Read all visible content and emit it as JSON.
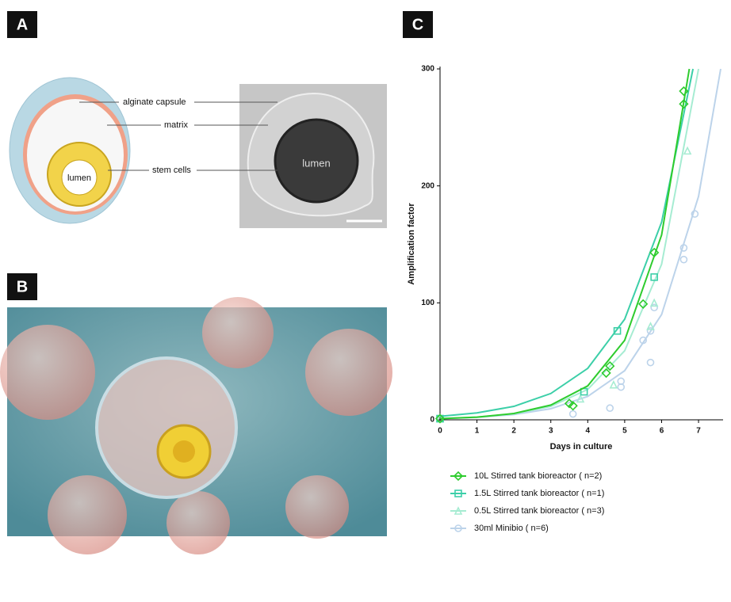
{
  "panels": {
    "labels": [
      "A",
      "B",
      "C"
    ],
    "panel_a": {
      "annotations": [
        "alginate capsule",
        "matrix",
        "stem cells"
      ],
      "lumen": [
        "lumen",
        "lumen"
      ]
    }
  },
  "chart_data": {
    "type": "scatter",
    "x_label": "Days in culture",
    "y_label": "Amplification factor",
    "xlim": [
      0,
      7.6
    ],
    "ylim": [
      0,
      300
    ],
    "xticks": [
      0,
      1,
      2,
      3,
      4,
      5,
      6,
      7
    ],
    "yticks": [
      0,
      100,
      200,
      300
    ],
    "series": [
      {
        "name": "10L Stirred tank bioreactor ( n=2)",
        "color": "#2ecc2e",
        "marker": "diamond",
        "x": [
          0,
          3.5,
          3.6,
          4.5,
          4.6,
          5.5,
          5.8,
          6.6,
          6.6
        ],
        "values": [
          1,
          14,
          12,
          40,
          46,
          99,
          143,
          270,
          281
        ],
        "curve": {
          "x": [
            0,
            1,
            2,
            3,
            4,
            5,
            6,
            6.75
          ],
          "y": [
            1,
            2.3,
            5.4,
            12.6,
            29,
            68,
            158,
            300
          ]
        }
      },
      {
        "name": "1.5L Stirred tank bioreactor ( n=1)",
        "color": "#3ccfa8",
        "marker": "square",
        "x": [
          0,
          3.9,
          4.8,
          5.8
        ],
        "values": [
          1,
          24,
          76,
          122
        ],
        "curve": {
          "x": [
            0,
            1,
            2,
            3,
            4,
            5,
            6,
            6.85
          ],
          "y": [
            3,
            5.9,
            11.5,
            22.5,
            44,
            86,
            169,
            300
          ]
        }
      },
      {
        "name": "0.5L Stirred tank bioreactor ( n=3)",
        "color": "#a6ecd2",
        "marker": "triangle",
        "x": [
          0,
          3.8,
          4.7,
          5.7,
          5.8,
          6.7
        ],
        "values": [
          1,
          18,
          30,
          80,
          100,
          230
        ],
        "curve": {
          "x": [
            0,
            1,
            2,
            3,
            4,
            5,
            6,
            7
          ],
          "y": [
            1,
            2.3,
            5.1,
            11.5,
            26,
            59,
            133,
            300
          ]
        }
      },
      {
        "name": "30ml Minibio ( n=6)",
        "color": "#bcd3ea",
        "marker": "circle",
        "x": [
          3.6,
          4.6,
          4.9,
          4.9,
          5.5,
          5.7,
          5.7,
          5.8,
          6.6,
          6.6,
          6.9
        ],
        "values": [
          5,
          10,
          28,
          33,
          68,
          49,
          76,
          96,
          137,
          147,
          176
        ],
        "curve": {
          "x": [
            0,
            1,
            2,
            3,
            4,
            5,
            6,
            7,
            7.6
          ],
          "y": [
            1,
            2.1,
            4.5,
            9.5,
            20,
            42,
            90,
            191,
            300
          ]
        }
      }
    ]
  }
}
